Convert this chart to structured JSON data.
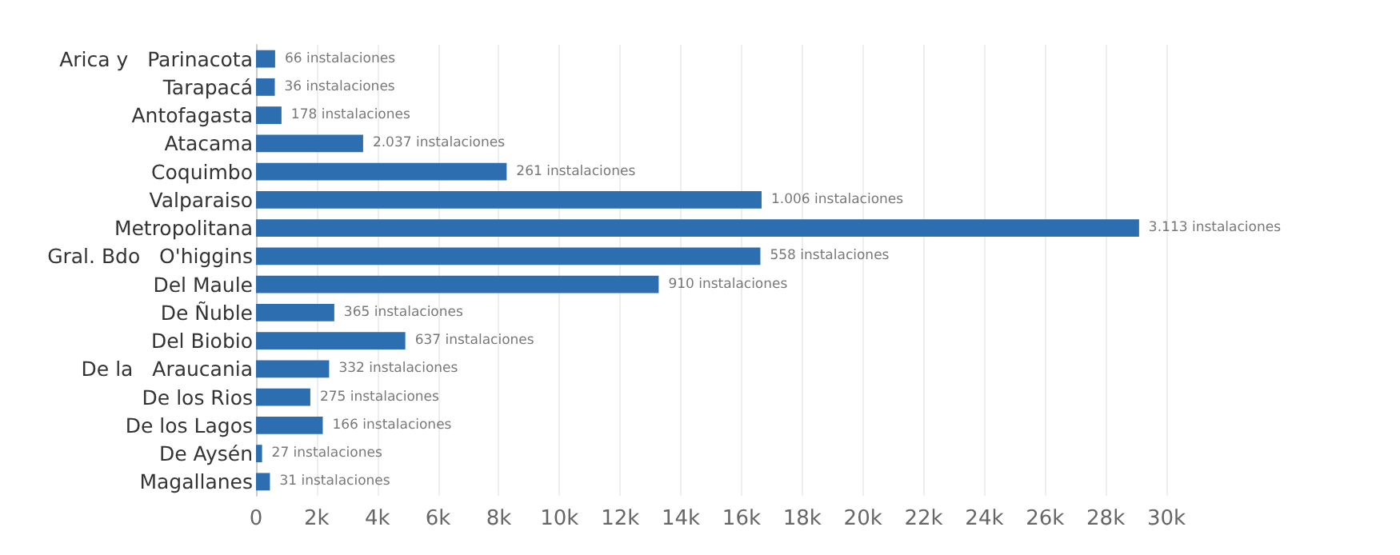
{
  "chart_data": {
    "type": "bar",
    "orientation": "horizontal",
    "categories": [
      "Arica y   Parinacota",
      "Tarapacá",
      "Antofagasta",
      "Atacama",
      "Coquimbo",
      "Valparaiso",
      "Metropolitana",
      "Gral. Bdo   O'higgins",
      "Del Maule",
      "De Ñuble",
      "Del Biobio",
      "De la   Araucania",
      "De los Rios",
      "De los Lagos",
      "De Aysén",
      "Magallanes"
    ],
    "values": [
      630,
      620,
      840,
      3530,
      8260,
      16660,
      29100,
      16620,
      13270,
      2580,
      4920,
      2410,
      1790,
      2200,
      200,
      460
    ],
    "annotations": [
      {
        "text": "66 instalaciones",
        "x": 630,
        "y": "Arica y   Parinacota"
      },
      {
        "text": "36 instalaciones",
        "x": 620,
        "y": "Tarapacá"
      },
      {
        "text": "178 instalaciones",
        "x": 840,
        "y": "Antofagasta"
      },
      {
        "text": "2.037 instalaciones",
        "x": 3530,
        "y": "Atacama"
      },
      {
        "text": "261 instalaciones",
        "x": 8260,
        "y": "Coquimbo"
      },
      {
        "text": "1.006 instalaciones",
        "x": 16660,
        "y": "Valparaiso"
      },
      {
        "text": "3.113 instalaciones",
        "x": 29100,
        "y": "Metropolitana"
      },
      {
        "text": "558 instalaciones",
        "x": 16620,
        "y": "Gral. Bdo   O'higgins"
      },
      {
        "text": "910 instalaciones",
        "x": 13270,
        "y": "Del Maule"
      },
      {
        "text": "365 instalaciones",
        "x": 2580,
        "y": "De Ñuble"
      },
      {
        "text": "637 instalaciones",
        "x": 4920,
        "y": "Del Biobio"
      },
      {
        "text": "332 instalaciones",
        "x": 2410,
        "y": "De la   Araucania"
      },
      {
        "text": "275 instalaciones",
        "x": 1790,
        "y": "De los Rios"
      },
      {
        "text": "166 instalaciones",
        "x": 2200,
        "y": "De los Lagos"
      },
      {
        "text": "27 instalaciones",
        "x": 200,
        "y": "De Aysén"
      },
      {
        "text": "31 instalaciones",
        "x": 460,
        "y": "Magallanes"
      }
    ],
    "color": "#2d6eb0",
    "xlim": [
      0,
      30000
    ],
    "xticks": [
      {
        "value": 0,
        "label": "0"
      },
      {
        "value": 2000,
        "label": "2k"
      },
      {
        "value": 4000,
        "label": "4k"
      },
      {
        "value": 6000,
        "label": "6k"
      },
      {
        "value": 8000,
        "label": "8k"
      },
      {
        "value": 10000,
        "label": "10k"
      },
      {
        "value": 12000,
        "label": "12k"
      },
      {
        "value": 14000,
        "label": "14k"
      },
      {
        "value": 16000,
        "label": "16k"
      },
      {
        "value": 18000,
        "label": "18k"
      },
      {
        "value": 20000,
        "label": "20k"
      },
      {
        "value": 22000,
        "label": "22k"
      },
      {
        "value": 24000,
        "label": "24k"
      },
      {
        "value": 26000,
        "label": "26k"
      },
      {
        "value": 28000,
        "label": "28k"
      },
      {
        "value": 30000,
        "label": "30k"
      }
    ],
    "grid": "x"
  }
}
